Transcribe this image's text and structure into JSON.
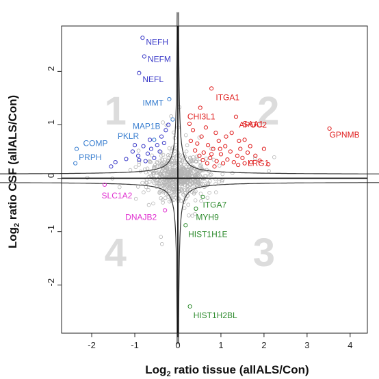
{
  "chart_data": {
    "type": "scatter",
    "xlabel_parts": [
      "Log",
      "2",
      " ratio tissue (allALS/Con)"
    ],
    "ylabel_parts": [
      "Log",
      "2",
      " ratio CSF (allALS/Con)"
    ],
    "xlim": [
      -2.7,
      4.4
    ],
    "ylim": [
      -2.9,
      2.85
    ],
    "xticks": [
      -2,
      -1,
      0,
      1,
      2,
      3,
      4
    ],
    "yticks": [
      -2,
      -1,
      0,
      1,
      2
    ],
    "quadrant_labels": [
      {
        "text": "1",
        "x": -1.45,
        "y": 1.2
      },
      {
        "text": "2",
        "x": 2.1,
        "y": 1.2
      },
      {
        "text": "3",
        "x": 2.0,
        "y": -1.45
      },
      {
        "text": "4",
        "x": -1.45,
        "y": -1.45
      }
    ],
    "colors": {
      "quadrant1_neuro": "#3a3ac8",
      "quadrant1_other": "#3a7fd0",
      "quadrant2": "#e02020",
      "quadrant3": "#2e8b2e",
      "quadrant4": "#e030d0",
      "background_points": "#b4b4b4",
      "curve": "#333333"
    },
    "labeled_points": [
      {
        "gene": "NEFH",
        "x": -0.82,
        "y": 2.63,
        "color": "#3a3ac8",
        "lx": -0.74,
        "ly": 2.5,
        "anchor": "start"
      },
      {
        "gene": "NEFM",
        "x": -0.78,
        "y": 2.28,
        "color": "#3a3ac8",
        "lx": -0.7,
        "ly": 2.18,
        "anchor": "start"
      },
      {
        "gene": "NEFL",
        "x": -0.9,
        "y": 1.97,
        "color": "#3a3ac8",
        "lx": -0.82,
        "ly": 1.8,
        "anchor": "start"
      },
      {
        "gene": "IMMT",
        "x": -0.2,
        "y": 1.48,
        "color": "#3a7fd0",
        "lx": -0.82,
        "ly": 1.36,
        "anchor": "start"
      },
      {
        "gene": "MAP1B",
        "x": -0.12,
        "y": 1.1,
        "color": "#3a7fd0",
        "lx": -1.05,
        "ly": 0.92,
        "anchor": "start"
      },
      {
        "gene": "PKLR",
        "x": -0.55,
        "y": 0.72,
        "color": "#3a7fd0",
        "lx": -1.4,
        "ly": 0.74,
        "anchor": "start"
      },
      {
        "gene": "COMP",
        "x": -2.35,
        "y": 0.55,
        "color": "#3a7fd0",
        "lx": -2.2,
        "ly": 0.6,
        "anchor": "start"
      },
      {
        "gene": "PRPH",
        "x": -2.38,
        "y": 0.28,
        "color": "#3a7fd0",
        "lx": -2.3,
        "ly": 0.34,
        "anchor": "start"
      },
      {
        "gene": "ITGA1",
        "x": 0.78,
        "y": 1.68,
        "color": "#e02020",
        "lx": 0.88,
        "ly": 1.46,
        "anchor": "start"
      },
      {
        "gene": "CHI3L1",
        "x": 0.52,
        "y": 1.32,
        "color": "#e02020",
        "lx": 0.22,
        "ly": 1.1,
        "anchor": "start"
      },
      {
        "gene": "APOC2",
        "x": 1.35,
        "y": 1.15,
        "color": "#e02020",
        "lx": 1.42,
        "ly": 0.95,
        "anchor": "start"
      },
      {
        "gene": "SAA1",
        "x": 1.42,
        "y": 0.7,
        "color": "#e02020",
        "lx": 1.5,
        "ly": 0.96,
        "anchor": "start"
      },
      {
        "gene": "GPNMB",
        "x": 3.52,
        "y": 0.93,
        "color": "#e02020",
        "lx": 3.52,
        "ly": 0.76,
        "anchor": "start"
      },
      {
        "gene": "LRG1",
        "x": 1.55,
        "y": 0.28,
        "color": "#e02020",
        "lx": 1.62,
        "ly": 0.23,
        "anchor": "start"
      },
      {
        "gene": "ITGA7",
        "x": 0.58,
        "y": -0.35,
        "color": "#2e8b2e",
        "lx": 0.58,
        "ly": -0.55,
        "anchor": "start"
      },
      {
        "gene": "MYH9",
        "x": 0.42,
        "y": -0.57,
        "color": "#2e8b2e",
        "lx": 0.42,
        "ly": -0.78,
        "anchor": "start"
      },
      {
        "gene": "HIST1H1E",
        "x": 0.18,
        "y": -0.88,
        "color": "#2e8b2e",
        "lx": 0.24,
        "ly": -1.1,
        "anchor": "start"
      },
      {
        "gene": "HIST1H2BL",
        "x": 0.28,
        "y": -2.4,
        "color": "#2e8b2e",
        "lx": 0.36,
        "ly": -2.62,
        "anchor": "start"
      },
      {
        "gene": "SLC1A2",
        "x": -1.7,
        "y": -0.12,
        "color": "#e030d0",
        "lx": -1.77,
        "ly": -0.38,
        "anchor": "start"
      },
      {
        "gene": "DNAJB2",
        "x": -0.3,
        "y": -0.6,
        "color": "#e030d0",
        "lx": -1.22,
        "ly": -0.78,
        "anchor": "start"
      }
    ],
    "extra_colored_points": [
      {
        "x": -1.05,
        "y": 0.5,
        "color": "#3a3ac8"
      },
      {
        "x": -0.92,
        "y": 0.42,
        "color": "#3a3ac8"
      },
      {
        "x": -0.8,
        "y": 0.6,
        "color": "#3a3ac8"
      },
      {
        "x": -0.7,
        "y": 0.46,
        "color": "#3a3ac8"
      },
      {
        "x": -0.62,
        "y": 0.55,
        "color": "#3a3ac8"
      },
      {
        "x": -0.55,
        "y": 0.38,
        "color": "#3a3ac8"
      },
      {
        "x": -0.48,
        "y": 0.62,
        "color": "#3a3ac8"
      },
      {
        "x": -0.42,
        "y": 0.5,
        "color": "#3a3ac8"
      },
      {
        "x": -0.38,
        "y": 0.78,
        "color": "#3a3ac8"
      },
      {
        "x": -0.32,
        "y": 0.66,
        "color": "#3a3ac8"
      },
      {
        "x": -0.28,
        "y": 0.9,
        "color": "#3a3ac8"
      },
      {
        "x": -0.9,
        "y": 0.34,
        "color": "#3a3ac8"
      },
      {
        "x": -1.2,
        "y": 0.36,
        "color": "#3a3ac8"
      },
      {
        "x": -0.75,
        "y": 0.32,
        "color": "#3a3ac8"
      },
      {
        "x": -0.22,
        "y": 1.0,
        "color": "#3a3ac8"
      },
      {
        "x": -1.45,
        "y": 0.3,
        "color": "#3a3ac8"
      },
      {
        "x": -0.65,
        "y": 0.72,
        "color": "#3a3ac8"
      },
      {
        "x": -1.0,
        "y": 0.62,
        "color": "#3a3ac8"
      },
      {
        "x": -1.55,
        "y": 0.22,
        "color": "#3a3ac8"
      },
      {
        "x": 0.35,
        "y": 0.9,
        "color": "#e02020"
      },
      {
        "x": 0.45,
        "y": 0.65,
        "color": "#e02020"
      },
      {
        "x": 0.55,
        "y": 0.78,
        "color": "#e02020"
      },
      {
        "x": 0.6,
        "y": 0.48,
        "color": "#e02020"
      },
      {
        "x": 0.7,
        "y": 0.62,
        "color": "#e02020"
      },
      {
        "x": 0.75,
        "y": 0.38,
        "color": "#e02020"
      },
      {
        "x": 0.82,
        "y": 0.55,
        "color": "#e02020"
      },
      {
        "x": 0.9,
        "y": 0.32,
        "color": "#e02020"
      },
      {
        "x": 0.95,
        "y": 0.7,
        "color": "#e02020"
      },
      {
        "x": 1.0,
        "y": 0.45,
        "color": "#e02020"
      },
      {
        "x": 1.05,
        "y": 0.28,
        "color": "#e02020"
      },
      {
        "x": 1.1,
        "y": 0.6,
        "color": "#e02020"
      },
      {
        "x": 1.15,
        "y": 0.35,
        "color": "#e02020"
      },
      {
        "x": 1.22,
        "y": 0.5,
        "color": "#e02020"
      },
      {
        "x": 1.3,
        "y": 0.3,
        "color": "#e02020"
      },
      {
        "x": 1.38,
        "y": 0.42,
        "color": "#e02020"
      },
      {
        "x": 1.45,
        "y": 0.55,
        "color": "#e02020"
      },
      {
        "x": 1.5,
        "y": 0.38,
        "color": "#e02020"
      },
      {
        "x": 1.62,
        "y": 0.48,
        "color": "#e02020"
      },
      {
        "x": 1.7,
        "y": 0.3,
        "color": "#e02020"
      },
      {
        "x": 1.8,
        "y": 0.42,
        "color": "#e02020"
      },
      {
        "x": 1.9,
        "y": 0.33,
        "color": "#e02020"
      },
      {
        "x": 2.0,
        "y": 0.55,
        "color": "#e02020"
      },
      {
        "x": 1.25,
        "y": 0.85,
        "color": "#e02020"
      },
      {
        "x": 0.65,
        "y": 0.95,
        "color": "#e02020"
      },
      {
        "x": 0.4,
        "y": 0.52,
        "color": "#e02020"
      },
      {
        "x": 0.5,
        "y": 0.42,
        "color": "#e02020"
      },
      {
        "x": 0.58,
        "y": 0.34,
        "color": "#e02020"
      },
      {
        "x": 0.68,
        "y": 0.28,
        "color": "#e02020"
      },
      {
        "x": 0.85,
        "y": 0.22,
        "color": "#e02020"
      },
      {
        "x": 0.3,
        "y": 0.7,
        "color": "#e02020"
      },
      {
        "x": 1.55,
        "y": 0.72,
        "color": "#e02020"
      },
      {
        "x": 1.12,
        "y": 0.78,
        "color": "#e02020"
      },
      {
        "x": 0.88,
        "y": 0.85,
        "color": "#e02020"
      },
      {
        "x": 1.4,
        "y": 0.25,
        "color": "#e02020"
      },
      {
        "x": 0.78,
        "y": 0.45,
        "color": "#e02020"
      },
      {
        "x": 0.98,
        "y": 0.55,
        "color": "#e02020"
      },
      {
        "x": 1.68,
        "y": 0.6,
        "color": "#e02020"
      },
      {
        "x": 2.1,
        "y": 0.26,
        "color": "#e02020"
      },
      {
        "x": 0.27,
        "y": 1.02,
        "color": "#e02020"
      }
    ],
    "gray_cloud": {
      "n": 620,
      "sx": 0.33,
      "sy": 0.19,
      "seed": 17
    }
  }
}
